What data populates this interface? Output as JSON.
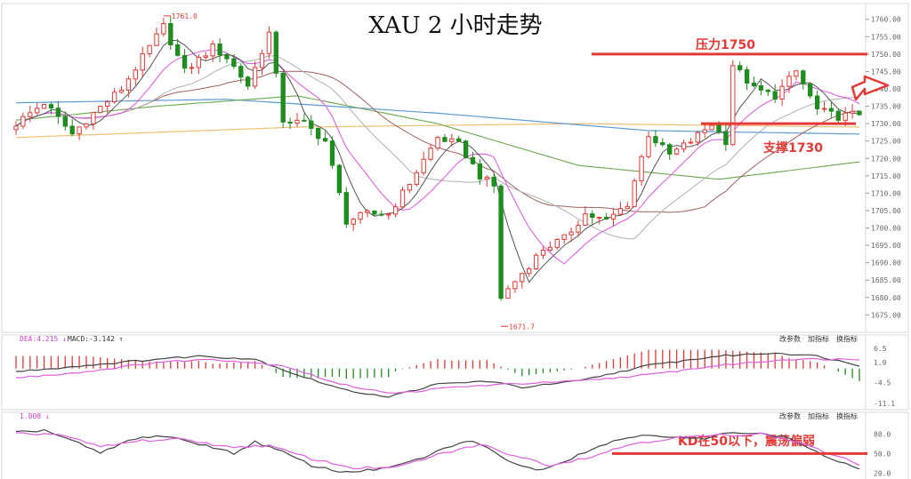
{
  "colors": {
    "up": "#e53935",
    "down": "#1e8c1e",
    "annotation": "#e53935",
    "ma5": "#555555",
    "ma10": "#e060e0",
    "ma20": "#b0b0b0",
    "ma30": "#a06060",
    "ma60": "#6aa84f",
    "ma120": "#5a9bd5",
    "ma250": "#f0c070"
  },
  "chart_data": [
    {
      "type": "candlestick",
      "title": "XAU 2 小时走势",
      "ylim": [
        1671,
        1763
      ],
      "y_ticks": [
        1675,
        1680,
        1685,
        1690,
        1695,
        1700,
        1705,
        1710,
        1715,
        1720,
        1725,
        1730,
        1735,
        1740,
        1745,
        1750,
        1755,
        1760
      ],
      "y_tick_labels": [
        "1675.00",
        "1680.00",
        "1685.00",
        "1690.00",
        "1695.00",
        "1700.00",
        "1705.00",
        "1710.00",
        "1715.00",
        "1720.00",
        "1725.00",
        "1730.00",
        "1735.00",
        "1740.00",
        "1745.00",
        "1750.00",
        "1755.00",
        "1760.00"
      ],
      "high_marker": "1761.0",
      "low_marker": "1671.7",
      "close_key": [
        [
          0,
          1730
        ],
        [
          4,
          1736
        ],
        [
          8,
          1727
        ],
        [
          11,
          1733
        ],
        [
          15,
          1740
        ],
        [
          18,
          1749
        ],
        [
          21,
          1758
        ],
        [
          24,
          1745
        ],
        [
          28,
          1752
        ],
        [
          30,
          1749
        ],
        [
          33,
          1741
        ],
        [
          36,
          1756
        ],
        [
          38,
          1731
        ],
        [
          41,
          1730
        ],
        [
          44,
          1725
        ],
        [
          47,
          1702
        ],
        [
          50,
          1704
        ],
        [
          53,
          1704
        ],
        [
          56,
          1713
        ],
        [
          60,
          1726
        ],
        [
          63,
          1724
        ],
        [
          66,
          1715
        ],
        [
          68,
          1712
        ],
        [
          69,
          1680
        ],
        [
          72,
          1687
        ],
        [
          75,
          1694
        ],
        [
          78,
          1697
        ],
        [
          81,
          1704
        ],
        [
          84,
          1702
        ],
        [
          87,
          1707
        ],
        [
          90,
          1727
        ],
        [
          93,
          1721
        ],
        [
          96,
          1725
        ],
        [
          99,
          1730
        ],
        [
          101,
          1725
        ],
        [
          102,
          1747
        ],
        [
          105,
          1740
        ],
        [
          108,
          1738
        ],
        [
          111,
          1745
        ],
        [
          114,
          1734
        ],
        [
          117,
          1732
        ],
        [
          120,
          1733
        ]
      ],
      "horizontal_lines": [
        {
          "label": "压力1750",
          "value": 1750
        },
        {
          "label": "支撑1730",
          "value": 1730
        }
      ],
      "annotation_labels": {
        "resistance": "压力1750",
        "support": "支撑1730"
      }
    },
    {
      "type": "line",
      "indicator": "MACD",
      "legend": [
        "DEA:4.215 ↓",
        "MACD:-3.142 ↑"
      ],
      "ylim": [
        -12,
        9
      ],
      "y_tick_labels": [
        "6.5",
        "1.9",
        "-4.5",
        "-11.1"
      ],
      "panel_buttons": [
        "改参数",
        "加指标",
        "换指标"
      ],
      "dif_key": [
        [
          0,
          -1
        ],
        [
          10,
          1
        ],
        [
          20,
          3
        ],
        [
          26,
          4
        ],
        [
          34,
          3
        ],
        [
          40,
          -2
        ],
        [
          47,
          -7
        ],
        [
          53,
          -9
        ],
        [
          60,
          -5
        ],
        [
          67,
          -4
        ],
        [
          72,
          -6
        ],
        [
          80,
          -4
        ],
        [
          90,
          1
        ],
        [
          100,
          4
        ],
        [
          108,
          5
        ],
        [
          114,
          4
        ],
        [
          120,
          1
        ]
      ],
      "dea_key": [
        [
          0,
          -3
        ],
        [
          10,
          -1
        ],
        [
          20,
          2
        ],
        [
          28,
          3
        ],
        [
          38,
          1
        ],
        [
          46,
          -5
        ],
        [
          54,
          -8
        ],
        [
          62,
          -6
        ],
        [
          70,
          -5
        ],
        [
          80,
          -4
        ],
        [
          90,
          -2
        ],
        [
          100,
          1
        ],
        [
          110,
          3
        ],
        [
          120,
          3
        ]
      ]
    },
    {
      "type": "line",
      "indicator": "KD",
      "legend": [
        "1.808 ↓"
      ],
      "ylim": [
        15,
        105
      ],
      "y_tick_labels": [
        "80.0",
        "50.0",
        "20.0"
      ],
      "panel_buttons": [
        "改参数",
        "加指标",
        "换指标"
      ],
      "k_key": [
        [
          0,
          82
        ],
        [
          4,
          86
        ],
        [
          8,
          70
        ],
        [
          12,
          50
        ],
        [
          16,
          70
        ],
        [
          20,
          78
        ],
        [
          24,
          70
        ],
        [
          28,
          60
        ],
        [
          31,
          50
        ],
        [
          34,
          68
        ],
        [
          38,
          52
        ],
        [
          42,
          32
        ],
        [
          46,
          22
        ],
        [
          50,
          24
        ],
        [
          54,
          30
        ],
        [
          58,
          44
        ],
        [
          62,
          62
        ],
        [
          65,
          70
        ],
        [
          68,
          52
        ],
        [
          71,
          35
        ],
        [
          74,
          24
        ],
        [
          78,
          38
        ],
        [
          82,
          58
        ],
        [
          86,
          72
        ],
        [
          90,
          80
        ],
        [
          94,
          74
        ],
        [
          98,
          72
        ],
        [
          102,
          84
        ],
        [
          106,
          80
        ],
        [
          110,
          74
        ],
        [
          114,
          52
        ],
        [
          117,
          36
        ],
        [
          120,
          28
        ]
      ],
      "d_key": [
        [
          0,
          80
        ],
        [
          6,
          80
        ],
        [
          12,
          60
        ],
        [
          18,
          70
        ],
        [
          24,
          72
        ],
        [
          30,
          60
        ],
        [
          36,
          62
        ],
        [
          42,
          42
        ],
        [
          48,
          28
        ],
        [
          54,
          28
        ],
        [
          60,
          48
        ],
        [
          66,
          64
        ],
        [
          70,
          50
        ],
        [
          76,
          32
        ],
        [
          82,
          46
        ],
        [
          88,
          66
        ],
        [
          94,
          74
        ],
        [
          100,
          78
        ],
        [
          106,
          80
        ],
        [
          112,
          66
        ],
        [
          116,
          48
        ],
        [
          120,
          34
        ]
      ],
      "reference_line": 50,
      "annotation": "KD在50以下，震荡偏弱"
    }
  ]
}
